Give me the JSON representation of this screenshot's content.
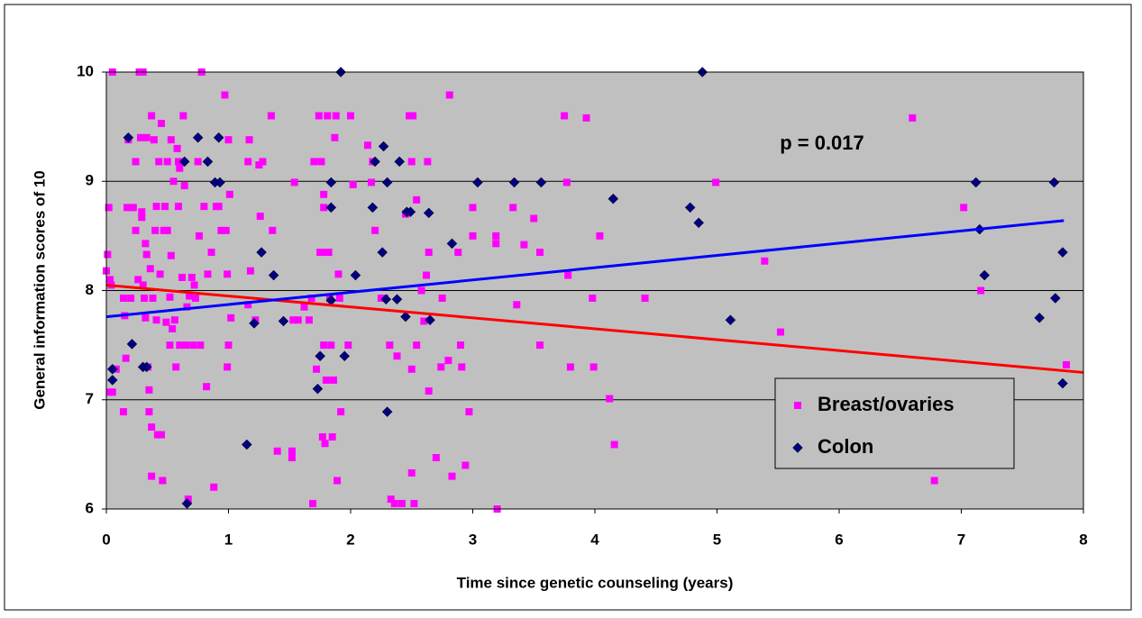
{
  "chart_data": {
    "type": "scatter",
    "xlabel": "Time since genetic counseling (years)",
    "ylabel": "General information scores of 10",
    "xlim": [
      0,
      8
    ],
    "ylim": [
      6,
      10
    ],
    "xticks": [
      0,
      1,
      2,
      3,
      4,
      5,
      6,
      7,
      8
    ],
    "yticks": [
      6,
      7,
      8,
      9,
      10
    ],
    "grid": true,
    "legend": "lower right",
    "annotations": [
      {
        "text": "p = 0.017"
      }
    ],
    "series": [
      {
        "name": "Breast/ovaries",
        "color": "#ff00ff",
        "marker": "square",
        "x": [
          0,
          0.02,
          0.01,
          0.03,
          0.04,
          0.05,
          0.03,
          0.05,
          0.08,
          0.14,
          0.15,
          0.16,
          0.14,
          0.17,
          0.18,
          0.2,
          0.22,
          0.24,
          0.24,
          0.26,
          0.27,
          0.28,
          0.29,
          0.29,
          0.3,
          0.3,
          0.31,
          0.32,
          0.32,
          0.33,
          0.33,
          0.34,
          0.35,
          0.35,
          0.36,
          0.37,
          0.37,
          0.37,
          0.38,
          0.39,
          0.4,
          0.41,
          0.41,
          0.42,
          0.43,
          0.44,
          0.45,
          0.45,
          0.46,
          0.47,
          0.48,
          0.49,
          0.5,
          0.5,
          0.52,
          0.52,
          0.53,
          0.53,
          0.54,
          0.55,
          0.56,
          0.57,
          0.58,
          0.59,
          0.59,
          0.6,
          0.6,
          0.62,
          0.63,
          0.64,
          0.65,
          0.66,
          0.67,
          0.68,
          0.7,
          0.71,
          0.72,
          0.73,
          0.75,
          0.76,
          0.77,
          0.78,
          0.8,
          0.82,
          0.83,
          0.86,
          0.88,
          0.9,
          0.92,
          0.94,
          0.97,
          0.98,
          0.99,
          0.99,
          1.0,
          1.0,
          1.01,
          1.02,
          1.16,
          1.16,
          1.17,
          1.18,
          1.22,
          1.25,
          1.26,
          1.28,
          1.35,
          1.36,
          1.4,
          1.52,
          1.52,
          1.53,
          1.54,
          1.57,
          1.62,
          1.66,
          1.68,
          1.69,
          1.7,
          1.72,
          1.74,
          1.75,
          1.76,
          1.77,
          1.78,
          1.78,
          1.78,
          1.79,
          1.8,
          1.8,
          1.81,
          1.82,
          1.83,
          1.84,
          1.85,
          1.86,
          1.87,
          1.88,
          1.89,
          1.9,
          1.91,
          1.92,
          1.98,
          2.0,
          2.02,
          2.14,
          2.17,
          2.18,
          2.2,
          2.25,
          2.28,
          2.32,
          2.33,
          2.36,
          2.38,
          2.42,
          2.45,
          2.48,
          2.5,
          2.5,
          2.5,
          2.51,
          2.52,
          2.54,
          2.54,
          2.58,
          2.6,
          2.62,
          2.63,
          2.64,
          2.64,
          2.7,
          2.74,
          2.75,
          2.8,
          2.81,
          2.83,
          2.88,
          2.9,
          2.91,
          2.94,
          2.97,
          3,
          3,
          3.19,
          3.19,
          3.2,
          3.33,
          3.36,
          3.42,
          3.5,
          3.55,
          3.55,
          3.75,
          3.77,
          3.78,
          3.8,
          3.93,
          3.98,
          3.99,
          4.04,
          4.12,
          4.16,
          4.41,
          4.99,
          5.39,
          5.52,
          6.6,
          6.78,
          7.02,
          7.16,
          7.86
        ],
        "values": [
          8.18,
          8.76,
          8.33,
          8.1,
          8.05,
          7.07,
          7.07,
          10,
          7.28,
          7.93,
          7.77,
          7.38,
          6.89,
          8.76,
          9.38,
          7.93,
          8.76,
          9.18,
          8.55,
          8.1,
          10,
          9.4,
          8.67,
          8.72,
          10,
          8.05,
          7.93,
          8.43,
          7.75,
          9.4,
          8.33,
          7.3,
          7.09,
          6.89,
          8.2,
          9.6,
          6.75,
          6.3,
          7.93,
          9.38,
          8.55,
          8.77,
          7.73,
          6.68,
          9.18,
          8.15,
          9.53,
          6.68,
          6.26,
          8.55,
          8.77,
          7.71,
          9.18,
          8.55,
          7.94,
          7.5,
          9.38,
          8.32,
          7.65,
          9,
          7.73,
          7.3,
          9.3,
          9.18,
          8.77,
          9.12,
          7.5,
          8.12,
          9.6,
          8.96,
          7.5,
          7.85,
          6.09,
          7.95,
          8.12,
          7.5,
          8.05,
          7.93,
          9.18,
          8.5,
          7.5,
          10,
          8.77,
          7.12,
          8.15,
          8.35,
          6.2,
          8.77,
          8.77,
          8.55,
          9.79,
          8.55,
          7.3,
          8.15,
          9.38,
          7.5,
          8.88,
          7.75,
          7.87,
          9.18,
          9.38,
          8.18,
          7.73,
          9.15,
          8.68,
          9.18,
          9.6,
          8.55,
          6.53,
          6.53,
          6.47,
          7.73,
          8.99,
          7.73,
          7.85,
          7.73,
          7.93,
          6.05,
          9.18,
          7.28,
          9.6,
          8.35,
          9.18,
          6.66,
          8.76,
          8.88,
          7.5,
          6.6,
          8.35,
          7.18,
          9.6,
          8.35,
          7.93,
          7.5,
          6.66,
          7.18,
          9.4,
          9.6,
          6.26,
          8.15,
          7.93,
          6.89,
          7.5,
          9.6,
          8.97,
          9.33,
          8.99,
          9.18,
          8.55,
          7.93,
          7.93,
          7.5,
          6.09,
          6.05,
          7.4,
          6.05,
          8.7,
          9.6,
          9.18,
          6.33,
          7.28,
          9.6,
          6.05,
          8.83,
          7.5,
          8,
          7.72,
          8.14,
          9.18,
          8.35,
          7.08,
          6.47,
          7.3,
          7.93,
          7.36,
          9.79,
          6.3,
          8.35,
          7.5,
          7.3,
          6.4,
          6.89,
          8.76,
          8.5,
          8.5,
          8.43,
          6,
          8.76,
          7.87,
          8.42,
          8.66,
          8.35,
          7.5,
          9.6,
          8.99,
          8.14,
          7.3,
          9.58,
          7.93,
          7.3,
          8.5,
          7.01,
          6.59,
          7.93,
          8.99,
          8.27,
          7.62,
          9.58,
          6.26,
          8.76,
          8,
          7.32
        ]
      },
      {
        "name": "Colon",
        "color": "#000080",
        "marker": "diamond",
        "x": [
          0.18,
          0.05,
          0.05,
          0.21,
          0.3,
          0.33,
          0.64,
          0.66,
          0.75,
          0.83,
          0.89,
          0.92,
          0.93,
          1.15,
          1.21,
          1.27,
          1.37,
          1.45,
          1.73,
          1.75,
          1.84,
          1.84,
          1.84,
          1.95,
          2.04,
          2.18,
          2.2,
          2.27,
          2.26,
          2.29,
          2.3,
          2.3,
          2.4,
          2.38,
          2.45,
          2.46,
          2.49,
          2.64,
          2.65,
          2.83,
          3.04,
          3.34,
          3.56,
          4.15,
          4.78,
          4.85,
          5.11,
          7.12,
          7.15,
          7.19,
          7.64,
          7.76,
          7.77,
          7.83,
          7.83,
          1.92,
          4.88
        ],
        "values": [
          9.4,
          7.28,
          7.18,
          7.51,
          7.3,
          7.3,
          9.18,
          6.05,
          9.4,
          9.18,
          8.99,
          9.4,
          8.99,
          6.59,
          7.7,
          8.35,
          8.14,
          7.72,
          7.1,
          7.4,
          7.91,
          8.99,
          8.76,
          7.4,
          8.14,
          8.76,
          9.18,
          9.32,
          8.35,
          7.92,
          6.89,
          8.99,
          9.18,
          7.92,
          7.76,
          8.72,
          8.72,
          8.71,
          7.73,
          8.43,
          8.99,
          8.99,
          8.99,
          8.84,
          8.76,
          8.62,
          7.73,
          8.99,
          8.56,
          8.14,
          7.75,
          8.99,
          7.93,
          8.35,
          7.15,
          10,
          10
        ]
      }
    ],
    "trend_lines": [
      {
        "color": "#ff0000",
        "x": [
          0,
          8
        ],
        "values": [
          8.05,
          7.25
        ]
      },
      {
        "color": "#0000ff",
        "x": [
          0,
          7.84
        ],
        "values": [
          7.76,
          8.64
        ]
      }
    ]
  }
}
